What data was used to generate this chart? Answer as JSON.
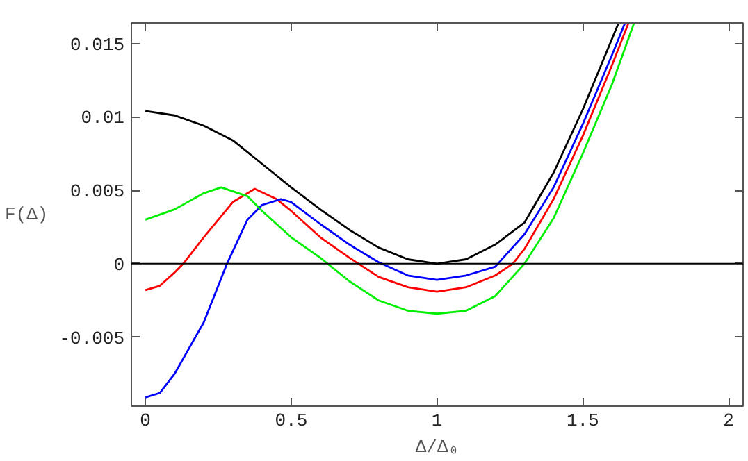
{
  "chart_data": {
    "type": "line",
    "xlabel": "Δ/Δ₀",
    "ylabel": "F(Δ)",
    "xlim": [
      -0.048,
      2.05
    ],
    "ylim": [
      -0.0097,
      0.0164
    ],
    "xticks": [
      0,
      0.5,
      1,
      1.5,
      2
    ],
    "yticks": [
      -0.005,
      0,
      0.005,
      0.01,
      0.015
    ],
    "grid": false,
    "marker": "none",
    "line_style": "solid",
    "ref_lines": [
      {
        "axis": "y",
        "value": 0,
        "color": "#000000"
      }
    ],
    "series": [
      {
        "color": "#000000",
        "x": [
          0,
          0.1,
          0.2,
          0.3,
          0.4,
          0.5,
          0.6,
          0.7,
          0.8,
          0.9,
          1.0,
          1.1,
          1.2,
          1.3,
          1.4,
          1.5,
          1.6,
          1.623
        ],
        "values": [
          0.0104,
          0.0101,
          0.0094,
          0.0084,
          0.0068,
          0.0052,
          0.0037,
          0.0023,
          0.0011,
          0.0003,
          0.0,
          0.0003,
          0.0013,
          0.0028,
          0.0062,
          0.0105,
          0.0153,
          0.0164
        ]
      },
      {
        "color": "#ff0000",
        "x": [
          0,
          0.05,
          0.1,
          0.13,
          0.2,
          0.3,
          0.375,
          0.45,
          0.5,
          0.6,
          0.7,
          0.8,
          0.9,
          1.0,
          1.1,
          1.2,
          1.26,
          1.3,
          1.4,
          1.5,
          1.6,
          1.657
        ],
        "values": [
          -0.0018,
          -0.0015,
          -0.0006,
          0.0,
          0.0018,
          0.0042,
          0.0051,
          0.0044,
          0.0036,
          0.0018,
          0.0004,
          -0.0009,
          -0.0016,
          -0.0019,
          -0.0016,
          -0.0008,
          0.0,
          0.001,
          0.0044,
          0.0087,
          0.0135,
          0.0164
        ]
      },
      {
        "color": "#0000ff",
        "x": [
          0,
          0.05,
          0.1,
          0.2,
          0.28,
          0.35,
          0.4,
          0.465,
          0.5,
          0.6,
          0.7,
          0.8,
          0.9,
          1.0,
          1.1,
          1.2,
          1.3,
          1.4,
          1.5,
          1.6,
          1.645
        ],
        "values": [
          -0.0091,
          -0.0088,
          -0.0075,
          -0.004,
          0.0,
          0.003,
          0.004,
          0.0044,
          0.0042,
          0.0027,
          0.0013,
          0.0001,
          -0.0008,
          -0.0011,
          -0.0008,
          -0.0002,
          0.002,
          0.0052,
          0.0095,
          0.0142,
          0.0164
        ]
      },
      {
        "color": "#00ee00",
        "x": [
          0,
          0.1,
          0.2,
          0.26,
          0.35,
          0.4,
          0.45,
          0.5,
          0.6,
          0.7,
          0.8,
          0.9,
          1.0,
          1.1,
          1.2,
          1.3,
          1.4,
          1.5,
          1.6,
          1.676
        ],
        "values": [
          0.003,
          0.0037,
          0.0048,
          0.0052,
          0.0046,
          0.0036,
          0.0027,
          0.0018,
          0.0004,
          -0.0012,
          -0.0025,
          -0.0032,
          -0.0034,
          -0.0032,
          -0.0022,
          0.0,
          0.0031,
          0.0075,
          0.0122,
          0.0164
        ]
      }
    ]
  }
}
